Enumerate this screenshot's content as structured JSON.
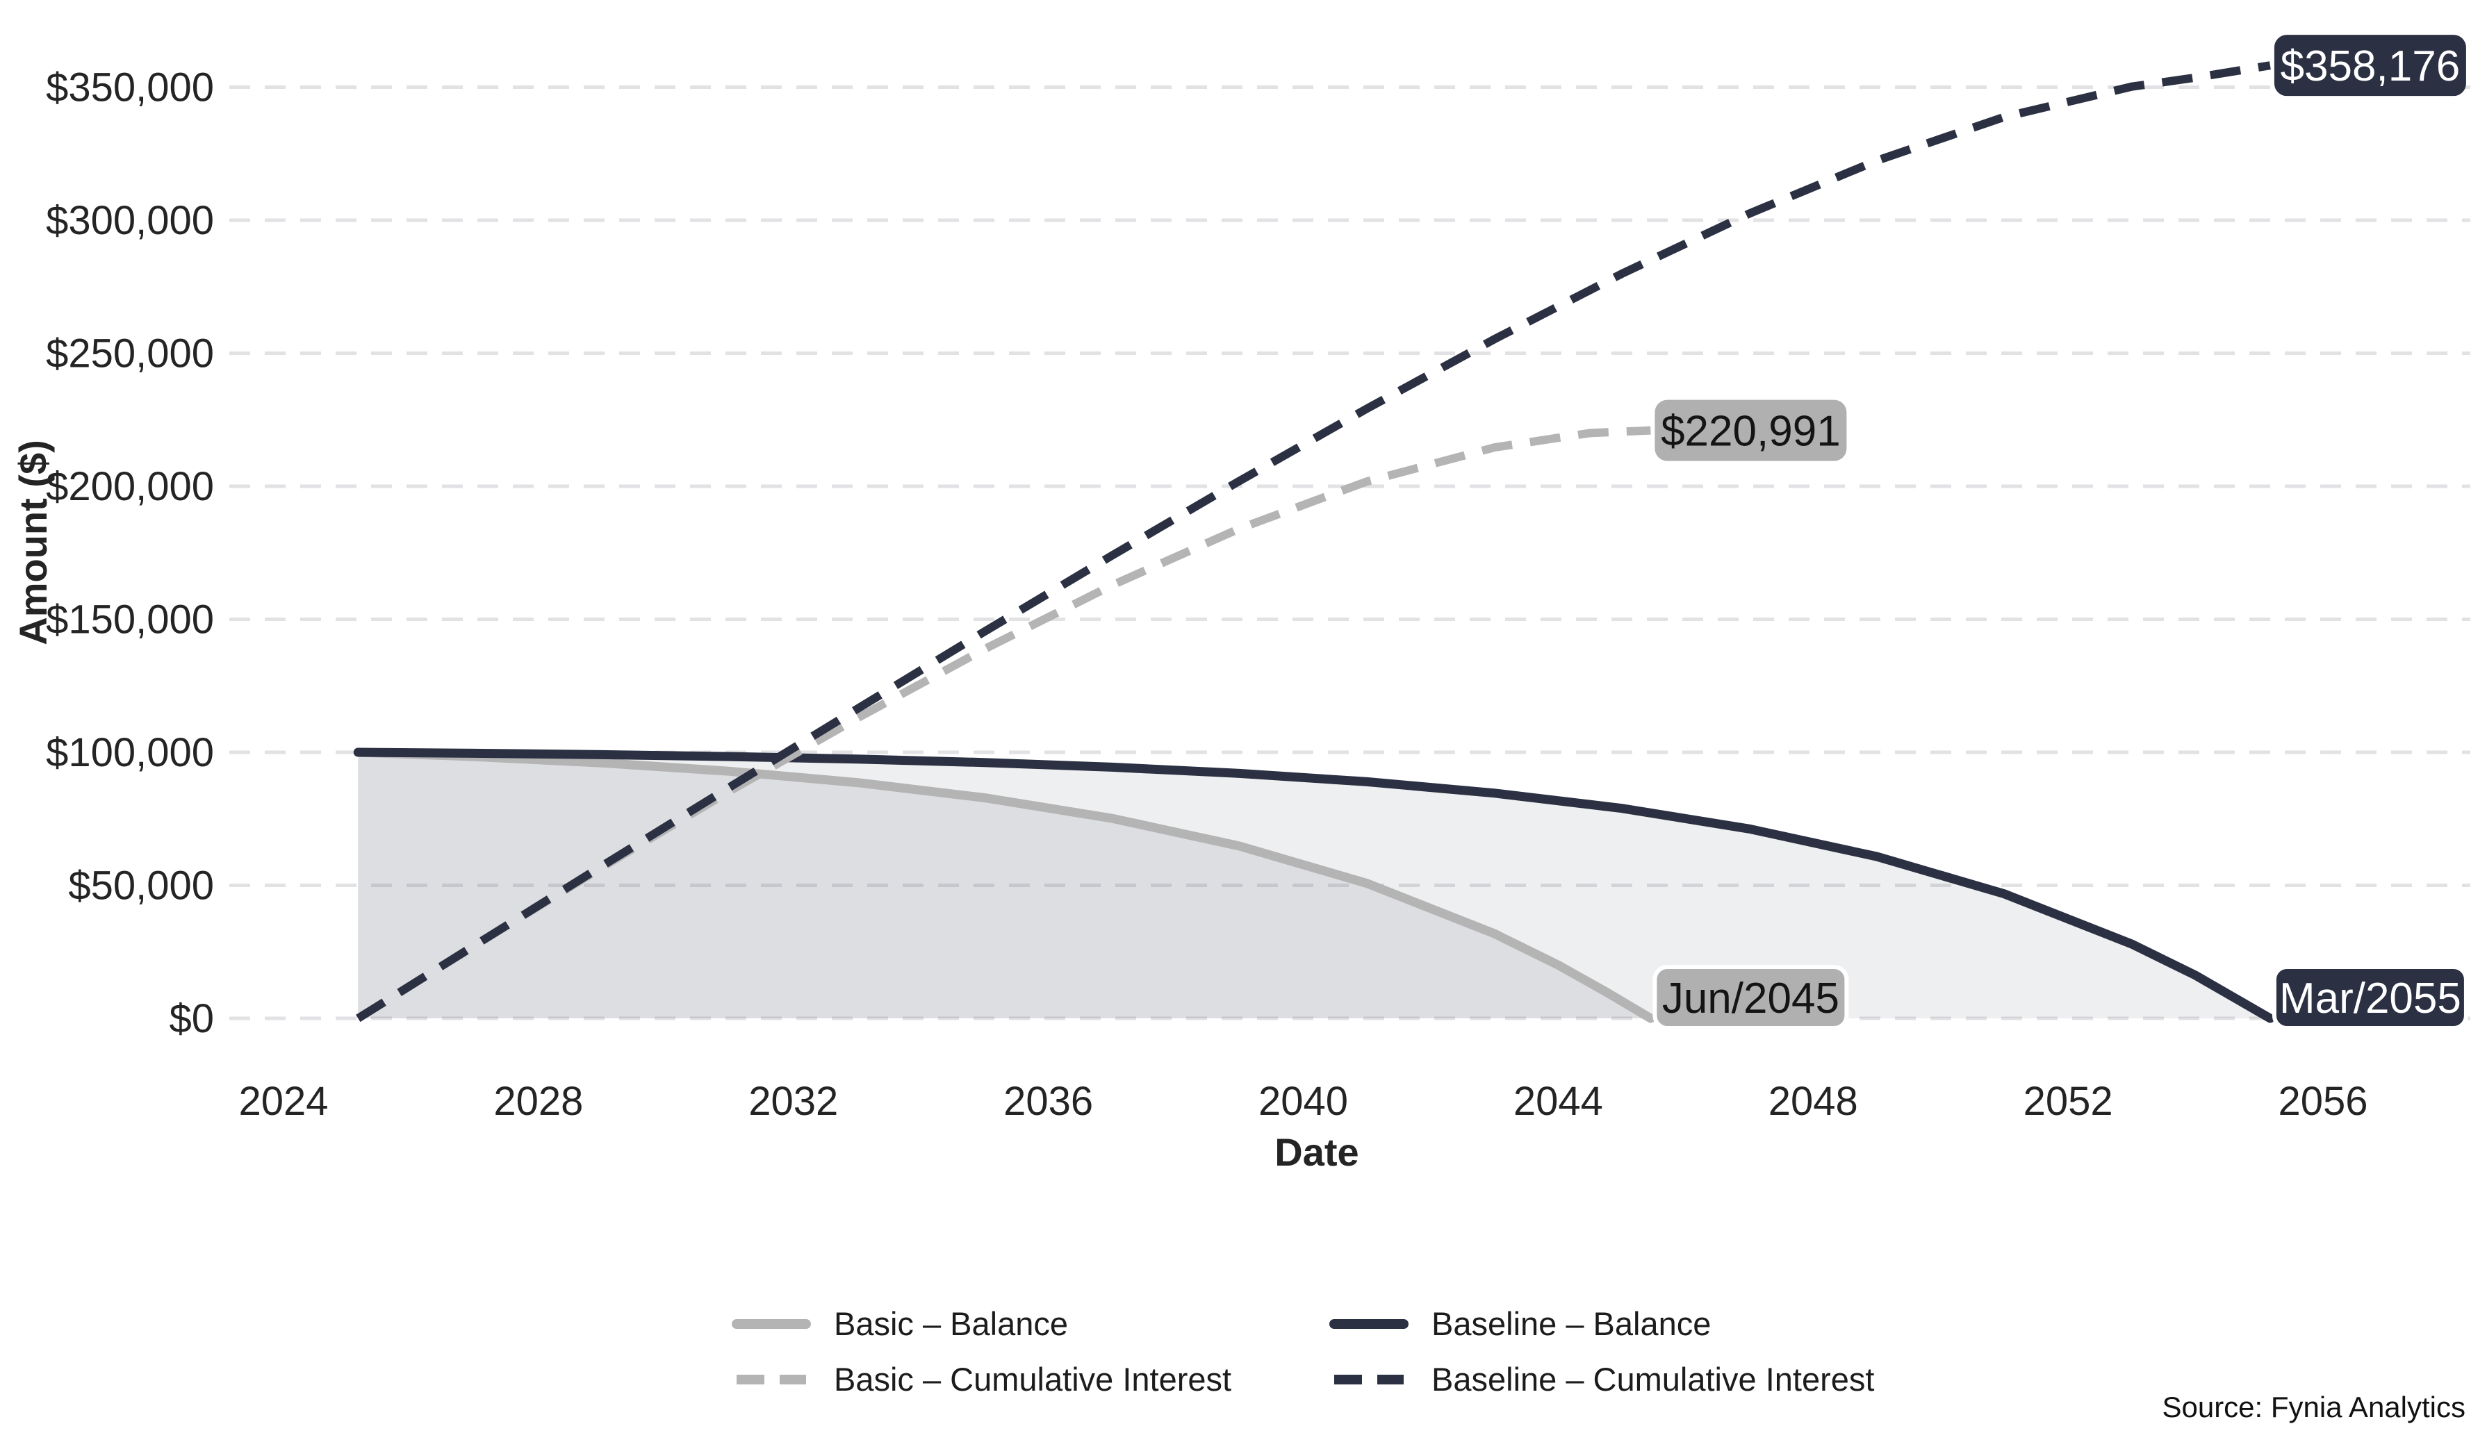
{
  "source_note": "Source: Fynia Analytics",
  "chart_data": {
    "type": "line",
    "title": "",
    "xlabel": "Date",
    "ylabel": "Amount ($)",
    "x_ticks": [
      2024,
      2028,
      2032,
      2036,
      2040,
      2044,
      2048,
      2052,
      2056
    ],
    "y_ticks": [
      {
        "value": 0,
        "label": "$0"
      },
      {
        "value": 50000,
        "label": "$50,000"
      },
      {
        "value": 100000,
        "label": "$100,000"
      },
      {
        "value": 150000,
        "label": "$150,000"
      },
      {
        "value": 200000,
        "label": "$200,000"
      },
      {
        "value": 250000,
        "label": "$250,000"
      },
      {
        "value": 300000,
        "label": "$300,000"
      },
      {
        "value": 350000,
        "label": "$350,000"
      }
    ],
    "x_range": [
      2024,
      2057
    ],
    "y_range": [
      0,
      370000
    ],
    "grid": "horizontal-dashed",
    "legend_position": "bottom-center",
    "colors": {
      "basic": "#b4b4b4",
      "baseline": "#2b3042",
      "badge_gray_bg": "#b0b0b0",
      "badge_dark_bg": "#2b3042",
      "grid": "#e2e2e5",
      "fill_baseline": "rgba(43,48,66,0.08)",
      "fill_basic": "rgba(120,123,135,0.14)"
    },
    "series": [
      {
        "name": "Basic – Balance",
        "color": "#b4b4b4",
        "style": "solid",
        "area": true,
        "fill": "rgba(120,123,135,0.14)",
        "points": [
          [
            2025.17,
            100000
          ],
          [
            2027,
            98380
          ],
          [
            2029,
            96040
          ],
          [
            2031,
            92880
          ],
          [
            2033,
            88620
          ],
          [
            2035,
            82890
          ],
          [
            2037,
            75160
          ],
          [
            2039,
            64750
          ],
          [
            2041,
            50740
          ],
          [
            2043,
            31840
          ],
          [
            2044,
            20030
          ],
          [
            2044.75,
            9960
          ],
          [
            2045.45,
            0
          ]
        ]
      },
      {
        "name": "Basic – Cumulative Interest",
        "color": "#b4b4b4",
        "style": "dashed",
        "area": false,
        "points": [
          [
            2025.17,
            0
          ],
          [
            2027,
            27450
          ],
          [
            2029,
            56800
          ],
          [
            2031,
            85400
          ],
          [
            2033,
            112800
          ],
          [
            2035,
            138800
          ],
          [
            2037,
            162800
          ],
          [
            2039,
            184100
          ],
          [
            2041,
            201800
          ],
          [
            2043,
            214600
          ],
          [
            2044.5,
            220000
          ],
          [
            2045.45,
            220991
          ]
        ]
      },
      {
        "name": "Baseline – Balance",
        "color": "#2b3042",
        "style": "solid",
        "area": true,
        "fill": "rgba(43,48,66,0.08)",
        "points": [
          [
            2025.17,
            100000
          ],
          [
            2027,
            99630
          ],
          [
            2029,
            99110
          ],
          [
            2031,
            98400
          ],
          [
            2033,
            97440
          ],
          [
            2035,
            96150
          ],
          [
            2037,
            94410
          ],
          [
            2039,
            92070
          ],
          [
            2041,
            88920
          ],
          [
            2043,
            84660
          ],
          [
            2045,
            78940
          ],
          [
            2047,
            71200
          ],
          [
            2049,
            60800
          ],
          [
            2051,
            46780
          ],
          [
            2053,
            27900
          ],
          [
            2054,
            16150
          ],
          [
            2055.17,
            0
          ]
        ]
      },
      {
        "name": "Baseline – Cumulative Interest",
        "color": "#2b3042",
        "style": "dashed",
        "area": false,
        "points": [
          [
            2025.17,
            0
          ],
          [
            2027,
            27450
          ],
          [
            2029,
            57300
          ],
          [
            2031,
            86900
          ],
          [
            2033,
            116300
          ],
          [
            2035,
            145400
          ],
          [
            2037,
            174000
          ],
          [
            2039,
            202000
          ],
          [
            2041,
            229200
          ],
          [
            2043,
            255300
          ],
          [
            2045,
            279900
          ],
          [
            2047,
            302500
          ],
          [
            2049,
            322400
          ],
          [
            2051,
            338800
          ],
          [
            2053,
            350200
          ],
          [
            2054,
            353600
          ],
          [
            2055.17,
            358176
          ]
        ]
      }
    ],
    "annotations": [
      {
        "text": "$358,176",
        "year": 2055.17,
        "value": 358176,
        "variant": "dark",
        "dy": 0,
        "outlined": false
      },
      {
        "text": "$220,991",
        "year": 2045.45,
        "value": 220991,
        "variant": "gray",
        "dy": 0,
        "outlined": false
      },
      {
        "text": "Jun/2045",
        "year": 2045.45,
        "value": 0,
        "variant": "gray",
        "dy": -30,
        "outlined": true
      },
      {
        "text": "Mar/2055",
        "year": 2055.17,
        "value": 0,
        "variant": "dark",
        "dy": -30,
        "outlined": true
      }
    ]
  }
}
